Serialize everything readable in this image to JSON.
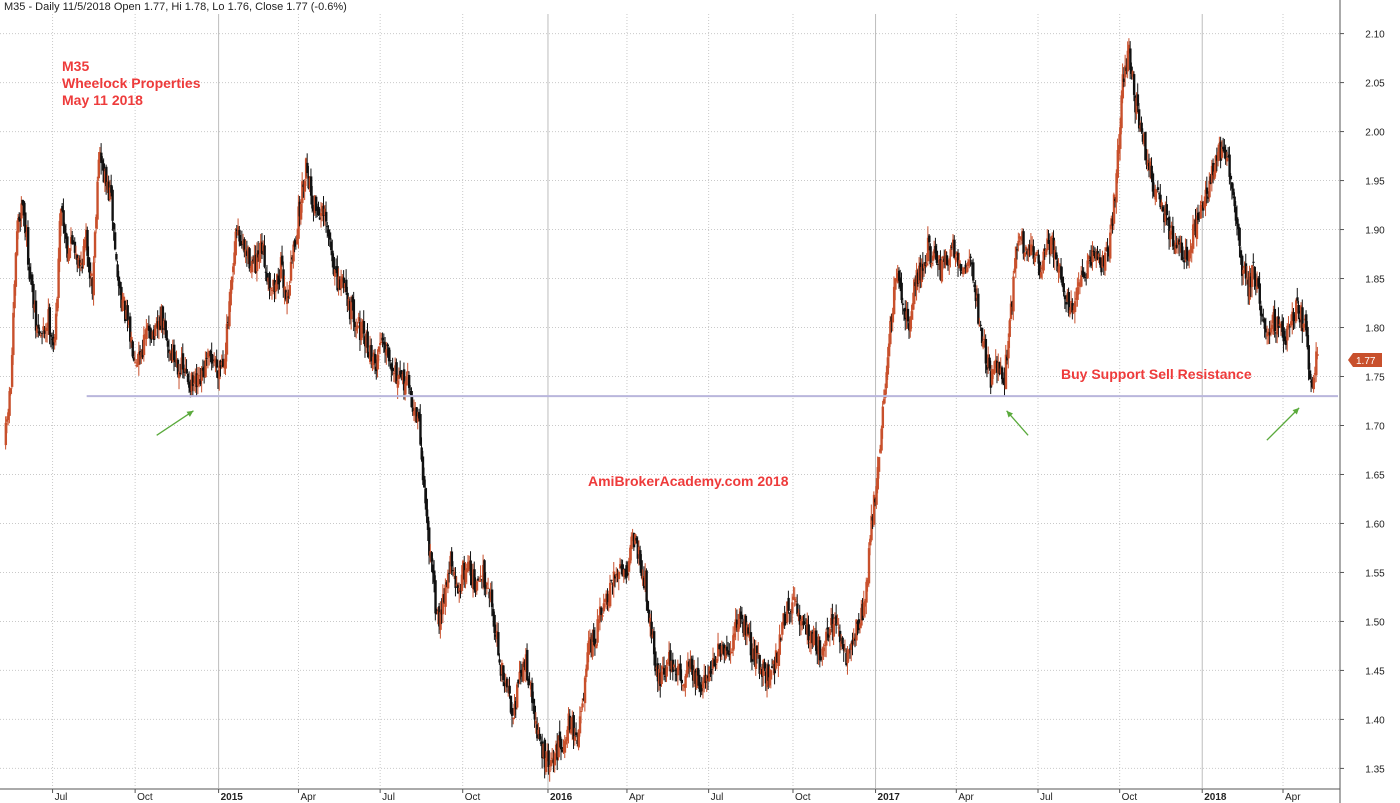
{
  "header": "M35 - Daily 11/5/2018 Open 1.77, Hi 1.78, Lo 1.76, Close 1.77 (-0.6%)",
  "annotations": {
    "title_lines": [
      "M35",
      "Wheelock Properties",
      "May 11 2018"
    ],
    "watermark": "AmiBrokerAcademy.com  2018",
    "level_label": "Buy Support Sell Resistance"
  },
  "colors": {
    "up": "#c8502c",
    "down": "#111111",
    "annotation": "#ee3b3b",
    "support_line": "#b9b6dc",
    "arrow": "#5aaa3c",
    "grid": "#c9c9c9",
    "price_tag": "#c8502c"
  },
  "chart_data": {
    "type": "candlestick",
    "grid": true,
    "ylim": [
      1.33,
      2.12
    ],
    "y_ticks": [
      "1.35",
      "1.40",
      "1.45",
      "1.50",
      "1.55",
      "1.60",
      "1.65",
      "1.70",
      "1.75",
      "1.80",
      "1.85",
      "1.90",
      "1.95",
      "2.00",
      "2.05",
      "2.10"
    ],
    "x_start": "2014-05-09",
    "x_end": "2018-05-11",
    "x_ticks": [
      {
        "date": "2014-07-01",
        "label": "Jul",
        "major": false
      },
      {
        "date": "2014-10-01",
        "label": "Oct",
        "major": false
      },
      {
        "date": "2015-01-02",
        "label": "2015",
        "major": true
      },
      {
        "date": "2015-04-01",
        "label": "Apr",
        "major": false
      },
      {
        "date": "2015-07-01",
        "label": "Jul",
        "major": false
      },
      {
        "date": "2015-10-01",
        "label": "Oct",
        "major": false
      },
      {
        "date": "2016-01-04",
        "label": "2016",
        "major": true
      },
      {
        "date": "2016-04-01",
        "label": "Apr",
        "major": false
      },
      {
        "date": "2016-07-01",
        "label": "Jul",
        "major": false
      },
      {
        "date": "2016-10-03",
        "label": "Oct",
        "major": false
      },
      {
        "date": "2017-01-03",
        "label": "2017",
        "major": true
      },
      {
        "date": "2017-04-03",
        "label": "Apr",
        "major": false
      },
      {
        "date": "2017-07-03",
        "label": "Jul",
        "major": false
      },
      {
        "date": "2017-10-02",
        "label": "Oct",
        "major": false
      },
      {
        "date": "2018-01-02",
        "label": "2018",
        "major": true
      },
      {
        "date": "2018-04-02",
        "label": "Apr",
        "major": false
      }
    ],
    "last_close": "1.77",
    "support_level": 1.73,
    "arrows": [
      {
        "from": [
          "2014-10-25",
          1.69
        ],
        "to": [
          "2014-12-05",
          1.715
        ]
      },
      {
        "from": [
          "2017-06-22",
          1.69
        ],
        "to": [
          "2017-05-29",
          1.715
        ]
      },
      {
        "from": [
          "2018-03-15",
          1.685
        ],
        "to": [
          "2018-04-20",
          1.718
        ]
      }
    ],
    "path": [
      [
        "2014-05-09",
        1.68
      ],
      [
        "2014-05-16",
        1.74
      ],
      [
        "2014-05-23",
        1.9
      ],
      [
        "2014-05-29",
        1.93
      ],
      [
        "2014-06-06",
        1.86
      ],
      [
        "2014-06-13",
        1.8
      ],
      [
        "2014-06-20",
        1.79
      ],
      [
        "2014-06-27",
        1.81
      ],
      [
        "2014-07-04",
        1.78
      ],
      [
        "2014-07-11",
        1.93
      ],
      [
        "2014-07-18",
        1.88
      ],
      [
        "2014-07-25",
        1.89
      ],
      [
        "2014-08-01",
        1.86
      ],
      [
        "2014-08-08",
        1.89
      ],
      [
        "2014-08-15",
        1.84
      ],
      [
        "2014-08-22",
        1.98
      ],
      [
        "2014-08-29",
        1.95
      ],
      [
        "2014-09-05",
        1.93
      ],
      [
        "2014-09-12",
        1.85
      ],
      [
        "2014-09-19",
        1.82
      ],
      [
        "2014-09-26",
        1.79
      ],
      [
        "2014-10-03",
        1.77
      ],
      [
        "2014-10-10",
        1.78
      ],
      [
        "2014-10-17",
        1.8
      ],
      [
        "2014-10-24",
        1.79
      ],
      [
        "2014-10-31",
        1.81
      ],
      [
        "2014-11-07",
        1.78
      ],
      [
        "2014-11-14",
        1.77
      ],
      [
        "2014-11-21",
        1.76
      ],
      [
        "2014-11-28",
        1.75
      ],
      [
        "2014-12-05",
        1.74
      ],
      [
        "2014-12-12",
        1.74
      ],
      [
        "2014-12-19",
        1.76
      ],
      [
        "2014-12-26",
        1.77
      ],
      [
        "2015-01-02",
        1.76
      ],
      [
        "2015-01-09",
        1.77
      ],
      [
        "2015-01-16",
        1.83
      ],
      [
        "2015-01-23",
        1.9
      ],
      [
        "2015-01-30",
        1.88
      ],
      [
        "2015-02-06",
        1.87
      ],
      [
        "2015-02-13",
        1.86
      ],
      [
        "2015-02-20",
        1.88
      ],
      [
        "2015-02-27",
        1.85
      ],
      [
        "2015-03-06",
        1.84
      ],
      [
        "2015-03-13",
        1.86
      ],
      [
        "2015-03-20",
        1.83
      ],
      [
        "2015-03-27",
        1.88
      ],
      [
        "2015-04-03",
        1.92
      ],
      [
        "2015-04-10",
        1.97
      ],
      [
        "2015-04-17",
        1.93
      ],
      [
        "2015-04-24",
        1.92
      ],
      [
        "2015-05-01",
        1.91
      ],
      [
        "2015-05-08",
        1.88
      ],
      [
        "2015-05-15",
        1.84
      ],
      [
        "2015-05-22",
        1.85
      ],
      [
        "2015-05-29",
        1.82
      ],
      [
        "2015-06-05",
        1.81
      ],
      [
        "2015-06-12",
        1.79
      ],
      [
        "2015-06-19",
        1.78
      ],
      [
        "2015-06-26",
        1.76
      ],
      [
        "2015-07-03",
        1.79
      ],
      [
        "2015-07-10",
        1.78
      ],
      [
        "2015-07-17",
        1.76
      ],
      [
        "2015-07-24",
        1.74
      ],
      [
        "2015-07-31",
        1.75
      ],
      [
        "2015-08-07",
        1.72
      ],
      [
        "2015-08-14",
        1.7
      ],
      [
        "2015-08-21",
        1.62
      ],
      [
        "2015-08-28",
        1.55
      ],
      [
        "2015-09-04",
        1.5
      ],
      [
        "2015-09-11",
        1.53
      ],
      [
        "2015-09-18",
        1.56
      ],
      [
        "2015-09-25",
        1.53
      ],
      [
        "2015-10-02",
        1.55
      ],
      [
        "2015-10-09",
        1.56
      ],
      [
        "2015-10-16",
        1.53
      ],
      [
        "2015-10-23",
        1.55
      ],
      [
        "2015-10-30",
        1.54
      ],
      [
        "2015-11-06",
        1.5
      ],
      [
        "2015-11-13",
        1.45
      ],
      [
        "2015-11-20",
        1.43
      ],
      [
        "2015-11-27",
        1.41
      ],
      [
        "2015-12-04",
        1.44
      ],
      [
        "2015-12-11",
        1.46
      ],
      [
        "2015-12-18",
        1.42
      ],
      [
        "2015-12-25",
        1.38
      ],
      [
        "2016-01-01",
        1.36
      ],
      [
        "2016-01-08",
        1.35
      ],
      [
        "2016-01-15",
        1.37
      ],
      [
        "2016-01-22",
        1.38
      ],
      [
        "2016-01-29",
        1.4
      ],
      [
        "2016-02-05",
        1.38
      ],
      [
        "2016-02-12",
        1.41
      ],
      [
        "2016-02-19",
        1.47
      ],
      [
        "2016-02-26",
        1.48
      ],
      [
        "2016-03-04",
        1.51
      ],
      [
        "2016-03-11",
        1.52
      ],
      [
        "2016-03-18",
        1.54
      ],
      [
        "2016-03-25",
        1.56
      ],
      [
        "2016-04-01",
        1.55
      ],
      [
        "2016-04-08",
        1.59
      ],
      [
        "2016-04-15",
        1.57
      ],
      [
        "2016-04-22",
        1.54
      ],
      [
        "2016-04-29",
        1.49
      ],
      [
        "2016-05-06",
        1.44
      ],
      [
        "2016-05-13",
        1.45
      ],
      [
        "2016-05-20",
        1.46
      ],
      [
        "2016-05-27",
        1.45
      ],
      [
        "2016-06-03",
        1.44
      ],
      [
        "2016-06-10",
        1.46
      ],
      [
        "2016-06-17",
        1.44
      ],
      [
        "2016-06-24",
        1.43
      ],
      [
        "2016-07-01",
        1.45
      ],
      [
        "2016-07-08",
        1.46
      ],
      [
        "2016-07-15",
        1.47
      ],
      [
        "2016-07-22",
        1.46
      ],
      [
        "2016-07-29",
        1.48
      ],
      [
        "2016-08-05",
        1.51
      ],
      [
        "2016-08-12",
        1.49
      ],
      [
        "2016-08-19",
        1.47
      ],
      [
        "2016-08-26",
        1.46
      ],
      [
        "2016-09-02",
        1.45
      ],
      [
        "2016-09-09",
        1.44
      ],
      [
        "2016-09-16",
        1.47
      ],
      [
        "2016-09-23",
        1.5
      ],
      [
        "2016-09-30",
        1.52
      ],
      [
        "2016-10-07",
        1.51
      ],
      [
        "2016-10-14",
        1.5
      ],
      [
        "2016-10-21",
        1.49
      ],
      [
        "2016-10-28",
        1.48
      ],
      [
        "2016-11-04",
        1.47
      ],
      [
        "2016-11-11",
        1.49
      ],
      [
        "2016-11-18",
        1.5
      ],
      [
        "2016-11-25",
        1.48
      ],
      [
        "2016-12-02",
        1.46
      ],
      [
        "2016-12-09",
        1.48
      ],
      [
        "2016-12-16",
        1.5
      ],
      [
        "2016-12-23",
        1.52
      ],
      [
        "2016-12-30",
        1.6
      ],
      [
        "2017-01-06",
        1.65
      ],
      [
        "2017-01-13",
        1.73
      ],
      [
        "2017-01-20",
        1.8
      ],
      [
        "2017-01-27",
        1.85
      ],
      [
        "2017-02-03",
        1.83
      ],
      [
        "2017-02-10",
        1.8
      ],
      [
        "2017-02-17",
        1.85
      ],
      [
        "2017-02-24",
        1.86
      ],
      [
        "2017-03-03",
        1.88
      ],
      [
        "2017-03-10",
        1.87
      ],
      [
        "2017-03-17",
        1.86
      ],
      [
        "2017-03-24",
        1.87
      ],
      [
        "2017-03-31",
        1.88
      ],
      [
        "2017-04-07",
        1.87
      ],
      [
        "2017-04-14",
        1.86
      ],
      [
        "2017-04-21",
        1.87
      ],
      [
        "2017-04-28",
        1.81
      ],
      [
        "2017-05-05",
        1.78
      ],
      [
        "2017-05-12",
        1.75
      ],
      [
        "2017-05-19",
        1.76
      ],
      [
        "2017-05-26",
        1.74
      ],
      [
        "2017-06-02",
        1.8
      ],
      [
        "2017-06-09",
        1.88
      ],
      [
        "2017-06-16",
        1.89
      ],
      [
        "2017-06-23",
        1.87
      ],
      [
        "2017-06-30",
        1.88
      ],
      [
        "2017-07-07",
        1.86
      ],
      [
        "2017-07-14",
        1.89
      ],
      [
        "2017-07-21",
        1.88
      ],
      [
        "2017-07-28",
        1.86
      ],
      [
        "2017-08-04",
        1.83
      ],
      [
        "2017-08-11",
        1.82
      ],
      [
        "2017-08-18",
        1.84
      ],
      [
        "2017-08-25",
        1.85
      ],
      [
        "2017-09-01",
        1.87
      ],
      [
        "2017-09-08",
        1.88
      ],
      [
        "2017-09-15",
        1.86
      ],
      [
        "2017-09-22",
        1.89
      ],
      [
        "2017-09-29",
        1.95
      ],
      [
        "2017-10-06",
        2.05
      ],
      [
        "2017-10-13",
        2.08
      ],
      [
        "2017-10-20",
        2.03
      ],
      [
        "2017-10-27",
        2.0
      ],
      [
        "2017-11-03",
        1.97
      ],
      [
        "2017-11-10",
        1.94
      ],
      [
        "2017-11-17",
        1.93
      ],
      [
        "2017-11-24",
        1.91
      ],
      [
        "2017-12-01",
        1.89
      ],
      [
        "2017-12-08",
        1.88
      ],
      [
        "2017-12-15",
        1.87
      ],
      [
        "2017-12-22",
        1.89
      ],
      [
        "2017-12-29",
        1.91
      ],
      [
        "2018-01-05",
        1.93
      ],
      [
        "2018-01-12",
        1.95
      ],
      [
        "2018-01-19",
        1.97
      ],
      [
        "2018-01-26",
        1.99
      ],
      [
        "2018-02-02",
        1.96
      ],
      [
        "2018-02-09",
        1.91
      ],
      [
        "2018-02-16",
        1.86
      ],
      [
        "2018-02-23",
        1.84
      ],
      [
        "2018-03-02",
        1.86
      ],
      [
        "2018-03-09",
        1.81
      ],
      [
        "2018-03-16",
        1.8
      ],
      [
        "2018-03-23",
        1.81
      ],
      [
        "2018-03-30",
        1.8
      ],
      [
        "2018-04-06",
        1.79
      ],
      [
        "2018-04-13",
        1.81
      ],
      [
        "2018-04-20",
        1.82
      ],
      [
        "2018-04-27",
        1.8
      ],
      [
        "2018-05-04",
        1.74
      ],
      [
        "2018-05-11",
        1.77
      ]
    ]
  }
}
